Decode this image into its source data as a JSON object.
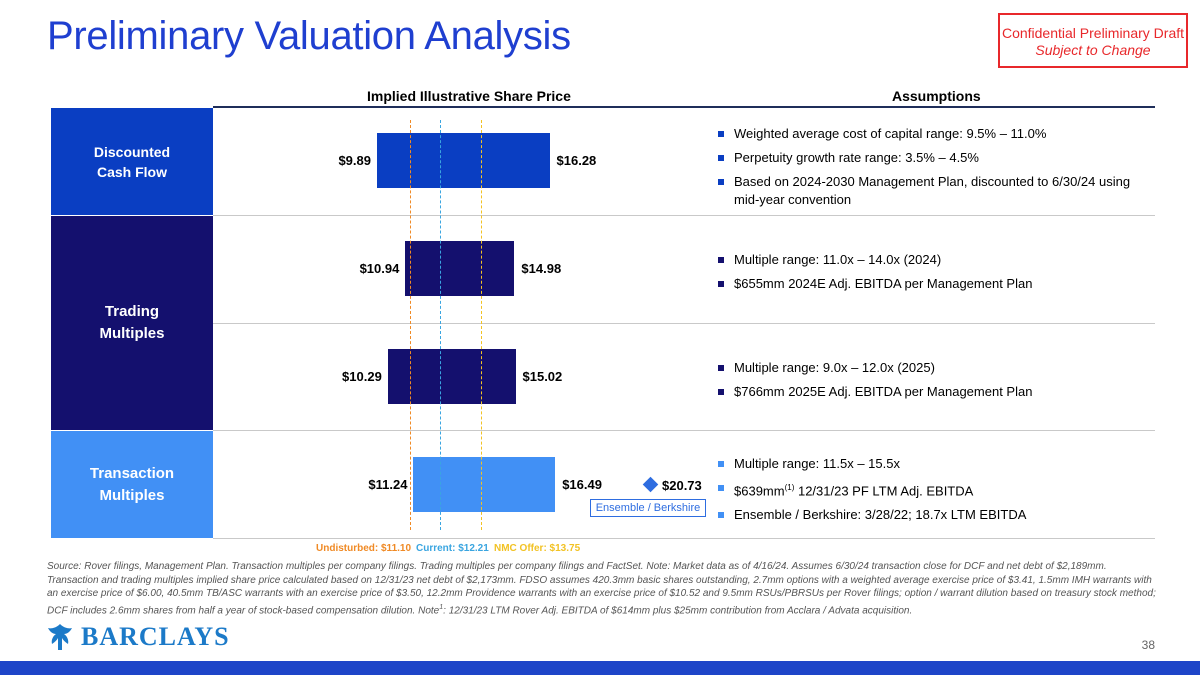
{
  "title": "Preliminary Valuation Analysis",
  "confidential": {
    "line1": "Confidential Preliminary Draft",
    "line2": "Subject to Change"
  },
  "headers": {
    "chart": "Implied Illustrative Share Price",
    "assumptions": "Assumptions"
  },
  "colors": {
    "dcf": "#0A3EC2",
    "trading": "#14106E",
    "transaction": "#4190F5",
    "undisturbed": "#F08A25",
    "current": "#3AA5E0",
    "nmc": "#F2C224",
    "brand": "#1F3FD0"
  },
  "sections": [
    {
      "label_lines": [
        "Discounted",
        "Cash Flow"
      ],
      "bullets": [
        "Weighted average cost of capital range: 9.5% – 11.0%",
        "Perpetuity growth rate range: 3.5% – 4.5%",
        "Based on 2024-2030 Management Plan, discounted to 6/30/24 using mid-year convention"
      ]
    },
    {
      "label_lines": [
        "Trading",
        "Multiples"
      ],
      "bullets_a": [
        "Multiple range: 11.0x – 14.0x (2024)",
        "$655mm 2024E Adj. EBITDA per Management Plan"
      ],
      "bullets_b": [
        "Multiple range: 9.0x – 12.0x (2025)",
        "$766mm 2025E Adj. EBITDA per Management Plan"
      ]
    },
    {
      "label_lines": [
        "Transaction",
        "Multiples"
      ],
      "bullets": [
        "Multiple range: 11.5x – 15.5x",
        "$639mm",
        "(1)",
        " 12/31/23 PF LTM Adj. EBITDA",
        "Ensemble / Berkshire: 3/28/22; 18.7x LTM EBITDA"
      ]
    }
  ],
  "chart_data": {
    "type": "bar",
    "orientation": "horizontal-range",
    "title": "Implied Illustrative Share Price",
    "categories": [
      "Discounted Cash Flow",
      "Trading Multiples (2024)",
      "Trading Multiples (2025)",
      "Transaction Multiples"
    ],
    "series": [
      {
        "name": "Low",
        "values": [
          9.89,
          10.94,
          10.29,
          11.24
        ]
      },
      {
        "name": "High",
        "values": [
          16.28,
          14.98,
          15.02,
          16.49
        ]
      }
    ],
    "labels_low": [
      "$9.89",
      "$10.94",
      "$10.29",
      "$11.24"
    ],
    "labels_high": [
      "$16.28",
      "$14.98",
      "$15.02",
      "$16.49"
    ],
    "reference_lines": [
      {
        "name": "Undisturbed",
        "value": 11.1,
        "label": "Undisturbed: $11.10"
      },
      {
        "name": "Current",
        "value": 12.21,
        "label": "Current: $12.21"
      },
      {
        "name": "NMC Offer",
        "value": 13.75,
        "label": "NMC Offer: $13.75"
      }
    ],
    "precedent": {
      "value": 20.73,
      "label": "$20.73",
      "tag": "Ensemble / Berkshire"
    },
    "xlim": [
      5.5,
      22
    ]
  },
  "source_note": "Source: Rover filings, Management Plan. Transaction multiples per company filings. Trading multiples per company filings and FactSet. Note: Market data as of 4/16/24. Assumes 6/30/24 transaction close for DCF and net debt of $2,189mm. Transaction and trading multiples implied share price calculated based on 12/31/23 net debt of $2,173mm. FDSO assumes 420.3mm basic shares outstanding, 2.7mm options with a weighted average exercise price of $3.41, 1.5mm IMH warrants with an exercise price of $6.00, 40.5mm TB/ASC warrants with an exercise price of $3.50, 12.2mm Providence warrants with an exercise price of $10.52 and 9.5mm RSUs/PBRSUs per Rover filings; option / warrant dilution based on treasury stock method; DCF includes 2.6mm shares from half a year of stock-based compensation dilution. Note",
  "source_note_sup": "1",
  "source_note_tail": ": 12/31/23 LTM Rover Adj. EBITDA of $614mm plus $25mm contribution from Acclara / Advata acquisition.",
  "logo_text": "BARCLAYS",
  "page_number": "38"
}
